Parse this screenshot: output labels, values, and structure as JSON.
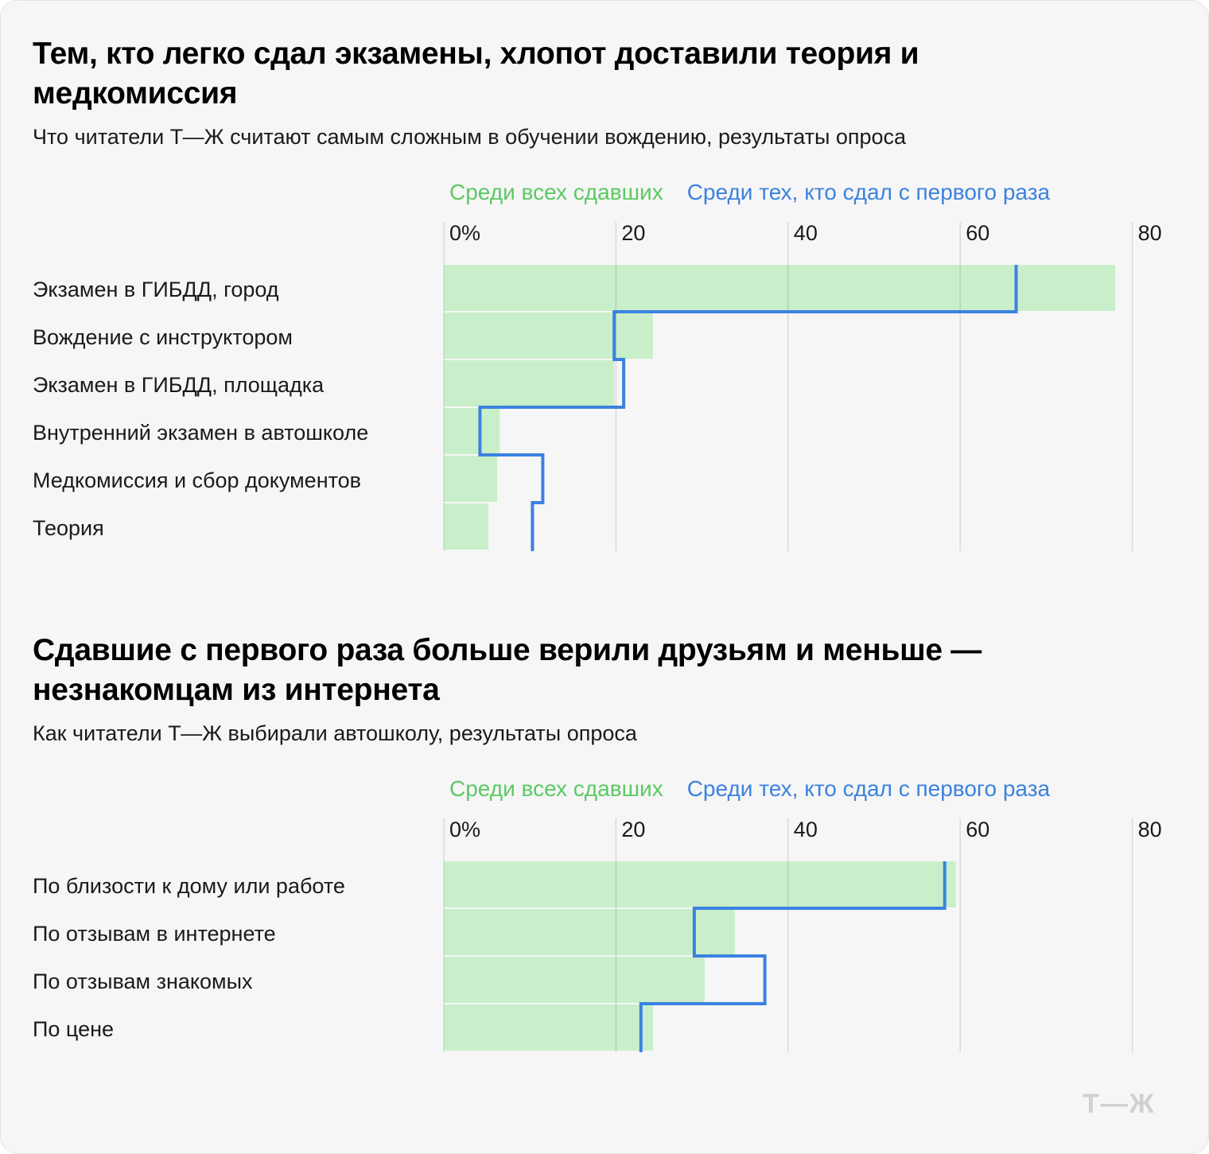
{
  "chart_data": [
    {
      "type": "bar",
      "title": "Тем, кто легко сдал экзамены, хлопот доставили теория и медкомиссия",
      "subtitle": "Что читатели Т—Ж считают самым сложным в обучении вождению, результаты опроса",
      "categories": [
        "Экзамен в ГИБДД, город",
        "Вождение с инструктором",
        "Экзамен в ГИБДД, площадка",
        "Внутренний экзамен в автошколе",
        "Медкомиссия и сбор документов",
        "Теория"
      ],
      "series": [
        {
          "name": "Среди всех сдавших",
          "style": "bars",
          "color": "#c9efca",
          "values": [
            78,
            24.3,
            19.8,
            6.5,
            6.2,
            5.2
          ]
        },
        {
          "name": "Среди тех, кто сдал с первого раза",
          "style": "step-line",
          "color": "#3b82e0",
          "values": [
            66.5,
            19.8,
            20.9,
            4.2,
            11.5,
            10.3
          ]
        }
      ],
      "xticks": [
        "0%",
        "20",
        "40",
        "60",
        "80"
      ],
      "xlim": [
        0,
        80
      ],
      "grid": true
    },
    {
      "type": "bar",
      "title": "Сдавшие с первого раза больше верили друзьям и меньше — незнакомцам из интернета",
      "subtitle": "Как читатели Т—Ж выбирали автошколу, результаты опроса",
      "categories": [
        "По близости к дому или работе",
        "По отзывам в интернете",
        "По отзывам знакомых",
        "По цене"
      ],
      "series": [
        {
          "name": "Среди всех сдавших",
          "style": "bars",
          "color": "#c9efca",
          "values": [
            59.5,
            33.8,
            30.3,
            24.3
          ]
        },
        {
          "name": "Среди тех, кто сдал с первого раза",
          "style": "step-line",
          "color": "#3b82e0",
          "values": [
            58.2,
            29.1,
            37.3,
            22.9
          ]
        }
      ],
      "xticks": [
        "0%",
        "20",
        "40",
        "60",
        "80"
      ],
      "xlim": [
        0,
        80
      ],
      "grid": true
    }
  ],
  "logo": "Т—Ж"
}
